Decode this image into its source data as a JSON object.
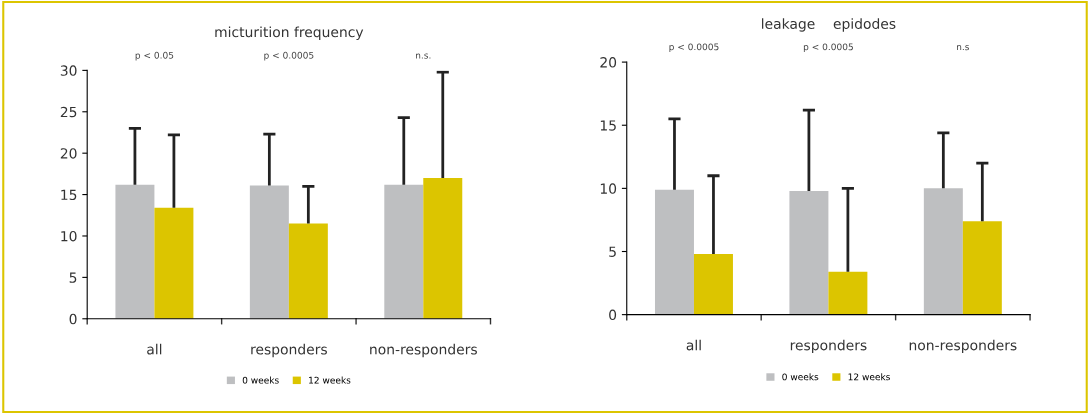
{
  "chart_data": [
    {
      "type": "bar",
      "title": "micturition frequency",
      "categories": [
        "all",
        "responders",
        "non-responders"
      ],
      "series": [
        {
          "name": "0 weeks",
          "color": "#bebfc1",
          "values": [
            16.2,
            16.1,
            16.2
          ],
          "errors": [
            [
              16.2,
              23.0
            ],
            [
              16.1,
              22.3
            ],
            [
              16.2,
              24.3
            ]
          ]
        },
        {
          "name": "12 weeks",
          "color": "#dcc500",
          "values": [
            13.4,
            11.5,
            17.0
          ],
          "errors": [
            [
              13.4,
              22.2
            ],
            [
              11.5,
              16.0
            ],
            [
              17.0,
              29.8
            ]
          ]
        }
      ],
      "ylim": [
        0,
        30
      ],
      "yticks": [
        0,
        5,
        10,
        15,
        20,
        25,
        30
      ],
      "grid": false,
      "legend": "bottom",
      "annotations": [
        "p < 0.05",
        "p < 0.0005",
        "n.s."
      ]
    },
    {
      "type": "bar",
      "title": "leakage    epidodes",
      "categories": [
        "all",
        "responders",
        "non-responders"
      ],
      "series": [
        {
          "name": "0 weeks",
          "color": "#bebfc1",
          "values": [
            9.9,
            9.8,
            10.0
          ],
          "errors": [
            [
              9.9,
              15.5
            ],
            [
              9.8,
              16.2
            ],
            [
              10.0,
              14.4
            ]
          ]
        },
        {
          "name": "12 weeks",
          "color": "#dcc500",
          "values": [
            4.8,
            3.4,
            7.4
          ],
          "errors": [
            [
              4.8,
              11.0
            ],
            [
              3.4,
              10.0
            ],
            [
              7.4,
              12.0
            ]
          ]
        }
      ],
      "ylim": [
        0,
        20
      ],
      "yticks": [
        0,
        5,
        10,
        15,
        20
      ],
      "grid": false,
      "legend": "bottom",
      "annotations": [
        "p < 0.0005",
        "p < 0.0005",
        "n.s"
      ]
    }
  ]
}
